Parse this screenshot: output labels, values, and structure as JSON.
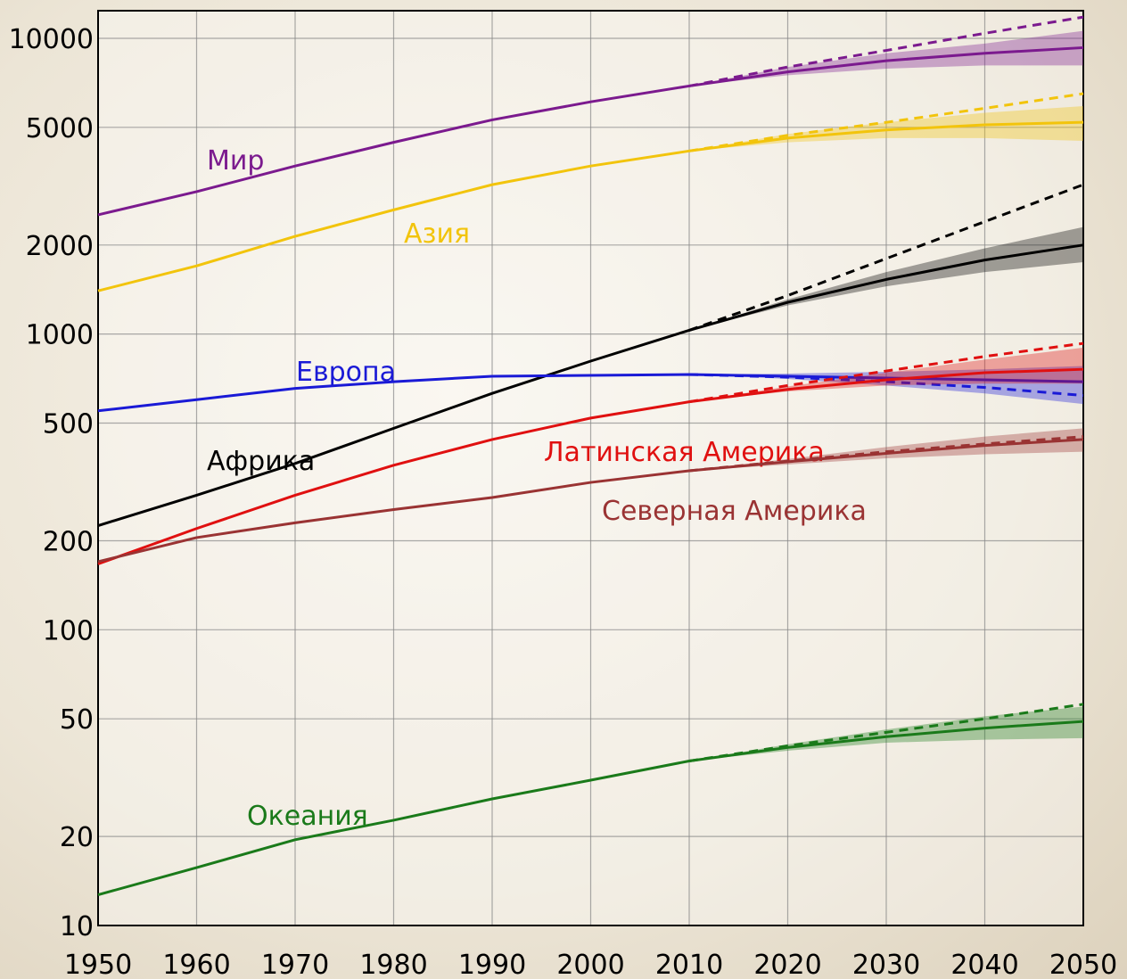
{
  "chart_data": {
    "type": "line",
    "log_y": true,
    "grid": true,
    "x": [
      1950,
      1960,
      1970,
      1980,
      1990,
      2000,
      2010,
      2020,
      2030,
      2040,
      2050
    ],
    "xlim": [
      1950,
      2050
    ],
    "xticks": [
      1950,
      1960,
      1970,
      1980,
      1990,
      2000,
      2010,
      2020,
      2030,
      2040,
      2050
    ],
    "ylim": [
      10,
      12400
    ],
    "yticks": [
      10,
      20,
      50,
      100,
      200,
      500,
      1000,
      2000,
      5000,
      10000
    ],
    "series": [
      {
        "name": "Мир",
        "color": "#7b1a8e",
        "values": [
          2530,
          3030,
          3700,
          4450,
          5300,
          6100,
          6900,
          7700,
          8400,
          8900,
          9300
        ],
        "projection": [
          null,
          null,
          null,
          null,
          null,
          null,
          6900,
          8000,
          9100,
          10400,
          11800
        ],
        "low": [
          null,
          null,
          null,
          null,
          null,
          null,
          6900,
          7500,
          7900,
          8100,
          8100
        ],
        "high": [
          null,
          null,
          null,
          null,
          null,
          null,
          6900,
          8000,
          8900,
          9600,
          10600
        ]
      },
      {
        "name": "Азия",
        "color": "#f2c40c",
        "values": [
          1400,
          1700,
          2140,
          2630,
          3200,
          3700,
          4160,
          4600,
          4900,
          5100,
          5200
        ],
        "projection": [
          null,
          null,
          null,
          null,
          null,
          null,
          4160,
          4700,
          5200,
          5800,
          6500
        ],
        "low": [
          null,
          null,
          null,
          null,
          null,
          null,
          4160,
          4450,
          4600,
          4600,
          4500
        ],
        "high": [
          null,
          null,
          null,
          null,
          null,
          null,
          4160,
          4750,
          5200,
          5600,
          5900
        ]
      },
      {
        "name": "Африка",
        "color": "#000000",
        "values": [
          225,
          285,
          365,
          480,
          630,
          810,
          1030,
          1280,
          1530,
          1780,
          2000
        ],
        "projection": [
          null,
          null,
          null,
          null,
          null,
          null,
          1030,
          1350,
          1800,
          2400,
          3200
        ],
        "low": [
          null,
          null,
          null,
          null,
          null,
          null,
          1030,
          1250,
          1450,
          1620,
          1750
        ],
        "high": [
          null,
          null,
          null,
          null,
          null,
          null,
          1030,
          1310,
          1620,
          1950,
          2300
        ]
      },
      {
        "name": "Европа",
        "color": "#1a1ad6",
        "values": [
          550,
          600,
          655,
          690,
          720,
          725,
          730,
          720,
          710,
          700,
          690
        ],
        "projection": [
          null,
          null,
          null,
          null,
          null,
          null,
          730,
          715,
          690,
          660,
          620
        ],
        "low": [
          null,
          null,
          null,
          null,
          null,
          null,
          730,
          705,
          670,
          630,
          580
        ],
        "high": [
          null,
          null,
          null,
          null,
          null,
          null,
          730,
          735,
          745,
          760,
          780
        ]
      },
      {
        "name": "Латинская Америка",
        "color": "#e01010",
        "values": [
          167,
          220,
          285,
          360,
          440,
          520,
          590,
          650,
          700,
          740,
          760
        ],
        "projection": [
          null,
          null,
          null,
          null,
          null,
          null,
          590,
          670,
          750,
          840,
          930
        ],
        "low": [
          null,
          null,
          null,
          null,
          null,
          null,
          590,
          640,
          670,
          680,
          680
        ],
        "high": [
          null,
          null,
          null,
          null,
          null,
          null,
          590,
          665,
          740,
          820,
          900
        ]
      },
      {
        "name": "Северная Америка",
        "color": "#9a3333",
        "values": [
          170,
          205,
          230,
          255,
          280,
          315,
          345,
          370,
          395,
          420,
          440
        ],
        "projection": [
          null,
          null,
          null,
          null,
          null,
          null,
          345,
          372,
          400,
          425,
          450
        ],
        "low": [
          null,
          null,
          null,
          null,
          null,
          null,
          345,
          362,
          380,
          392,
          400
        ],
        "high": [
          null,
          null,
          null,
          null,
          null,
          null,
          345,
          378,
          415,
          450,
          480
        ]
      },
      {
        "name": "Океания",
        "color": "#1a7a1a",
        "values": [
          12.7,
          15.7,
          19.5,
          22.7,
          26.8,
          31,
          36,
          40,
          43.5,
          46.5,
          49
        ],
        "projection": [
          null,
          null,
          null,
          null,
          null,
          null,
          36,
          40.5,
          45,
          50,
          56
        ],
        "low": [
          null,
          null,
          null,
          null,
          null,
          null,
          36,
          39,
          41.5,
          42.5,
          43
        ],
        "high": [
          null,
          null,
          null,
          null,
          null,
          null,
          36,
          41,
          46,
          51,
          55
        ]
      }
    ]
  }
}
